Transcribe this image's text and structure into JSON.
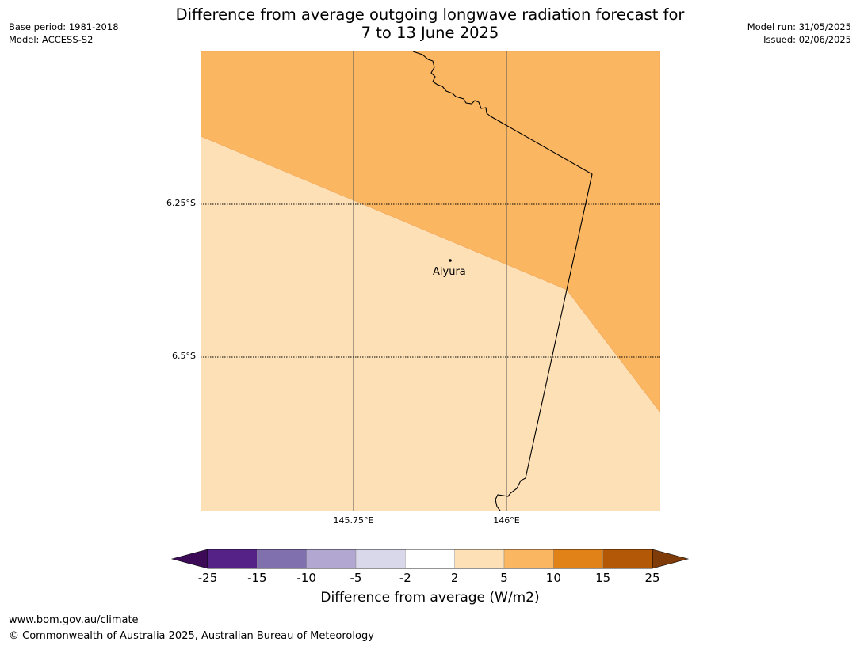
{
  "title": {
    "line1": "Difference from average outgoing longwave radiation forecast for",
    "line2": "7 to 13 June 2025"
  },
  "meta_left": {
    "base_period": "Base period: 1981-2018",
    "model": "Model: ACCESS-S2"
  },
  "meta_right": {
    "model_run": "Model run: 31/05/2025",
    "issued": "Issued: 02/06/2025"
  },
  "map": {
    "lat_labels": [
      "6.25°S",
      "6.5°S"
    ],
    "lon_labels": [
      "145.75°E",
      "146°E"
    ],
    "place": "Aiyura",
    "fill_colors": {
      "upper_region": "#fbb662",
      "lower_region": "#fde0b6"
    }
  },
  "colorbar": {
    "ticks": [
      "-25",
      "-15",
      "-10",
      "-5",
      "-2",
      "2",
      "5",
      "10",
      "15",
      "25"
    ],
    "colors": [
      "#3c0a57",
      "#552288",
      "#8071ae",
      "#b1a7d1",
      "#d8d8ea",
      "#ffffff",
      "#fde0b6",
      "#fbb662",
      "#e08218",
      "#b35806",
      "#7f3b08"
    ],
    "label": "Difference from average (W/m2)"
  },
  "footer": {
    "url": "www.bom.gov.au/climate",
    "copyright": "© Commonwealth of Australia 2025, Australian Bureau of Meteorology"
  }
}
